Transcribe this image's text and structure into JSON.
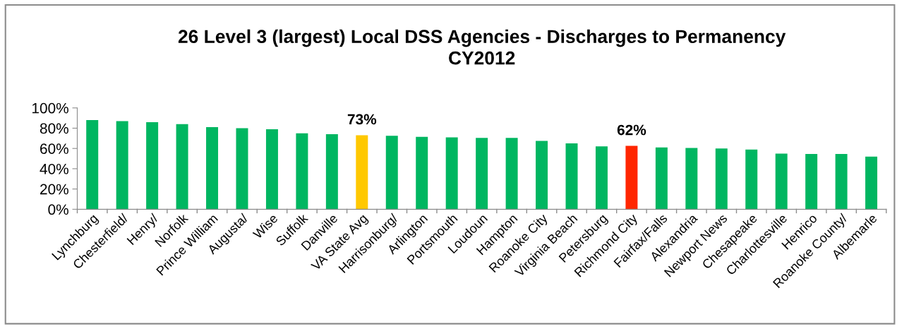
{
  "chart_data": {
    "type": "bar",
    "title": "26 Level 3 (largest) Local DSS Agencies - Discharges to Permanency\nCY2012",
    "categories": [
      "Lynchburg",
      "Chesterfield/",
      "Henry/",
      "Norfolk",
      "Prince William",
      "Augusta/",
      "Wise",
      "Suffolk",
      "Danville",
      "VA State Avg",
      "Harrisonburg/",
      "Arlington",
      "Portsmouth",
      "Loudoun",
      "Hampton",
      "Roanoke City",
      "Virginia Beach",
      "Petersburg",
      "Richmond City",
      "Fairfax/Falls",
      "Alexandria",
      "Newport News",
      "Chesapeake",
      "Charlottesville",
      "Henrico",
      "Roanoke County/",
      "Albemarle"
    ],
    "values": [
      88,
      87,
      86,
      84,
      81,
      80,
      79,
      75,
      74,
      73,
      72.5,
      71.5,
      71,
      70.5,
      70.5,
      67.5,
      65,
      62,
      62.5,
      61,
      60.5,
      60,
      59,
      55,
      54.5,
      54.5,
      52
    ],
    "colors": [
      "#00b661",
      "#00b661",
      "#00b661",
      "#00b661",
      "#00b661",
      "#00b661",
      "#00b661",
      "#00b661",
      "#00b661",
      "#ffc800",
      "#00b661",
      "#00b661",
      "#00b661",
      "#00b661",
      "#00b661",
      "#00b661",
      "#00b661",
      "#00b661",
      "#ff2600",
      "#00b661",
      "#00b661",
      "#00b661",
      "#00b661",
      "#00b661",
      "#00b661",
      "#00b661",
      "#00b661"
    ],
    "value_labels": [
      null,
      null,
      null,
      null,
      null,
      null,
      null,
      null,
      null,
      "73%",
      null,
      null,
      null,
      null,
      null,
      null,
      null,
      null,
      "62%",
      null,
      null,
      null,
      null,
      null,
      null,
      null,
      null
    ],
    "ylim": [
      0,
      100
    ],
    "yticks": [
      {
        "value": 0,
        "label": "0%"
      },
      {
        "value": 20,
        "label": "20%"
      },
      {
        "value": 40,
        "label": "40%"
      },
      {
        "value": 60,
        "label": "60%"
      },
      {
        "value": 80,
        "label": "80%"
      },
      {
        "value": 100,
        "label": "100%"
      }
    ],
    "grid": false,
    "legend": false
  }
}
